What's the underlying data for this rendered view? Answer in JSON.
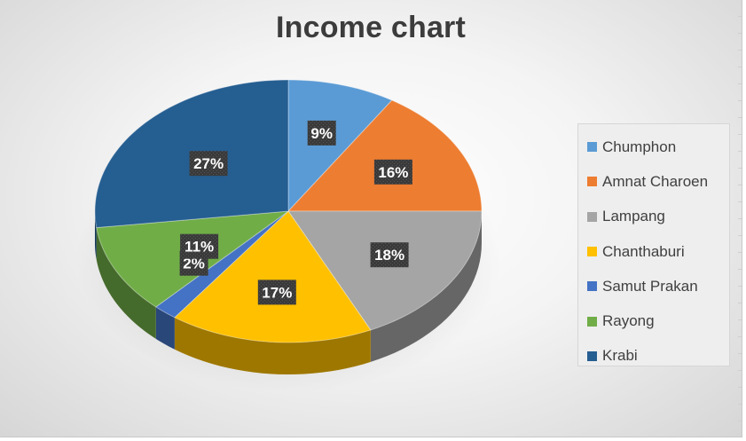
{
  "chart_data": {
    "type": "pie",
    "title": "Income chart",
    "categories": [
      "Chumphon",
      "Amnat Charoen",
      "Lampang",
      "Chanthaburi",
      "Samut Prakan",
      "Rayong",
      "Krabi"
    ],
    "values": [
      9,
      16,
      18,
      17,
      2,
      11,
      27
    ],
    "value_labels": [
      "9%",
      "16%",
      "18%",
      "17%",
      "2%",
      "11%",
      "27%"
    ],
    "unit": "%",
    "legend_position": "right",
    "colors": [
      "#5b9bd5",
      "#ed7d31",
      "#a5a5a5",
      "#ffc000",
      "#4472c4",
      "#70ad47",
      "#255e91"
    ],
    "style": "3d"
  }
}
